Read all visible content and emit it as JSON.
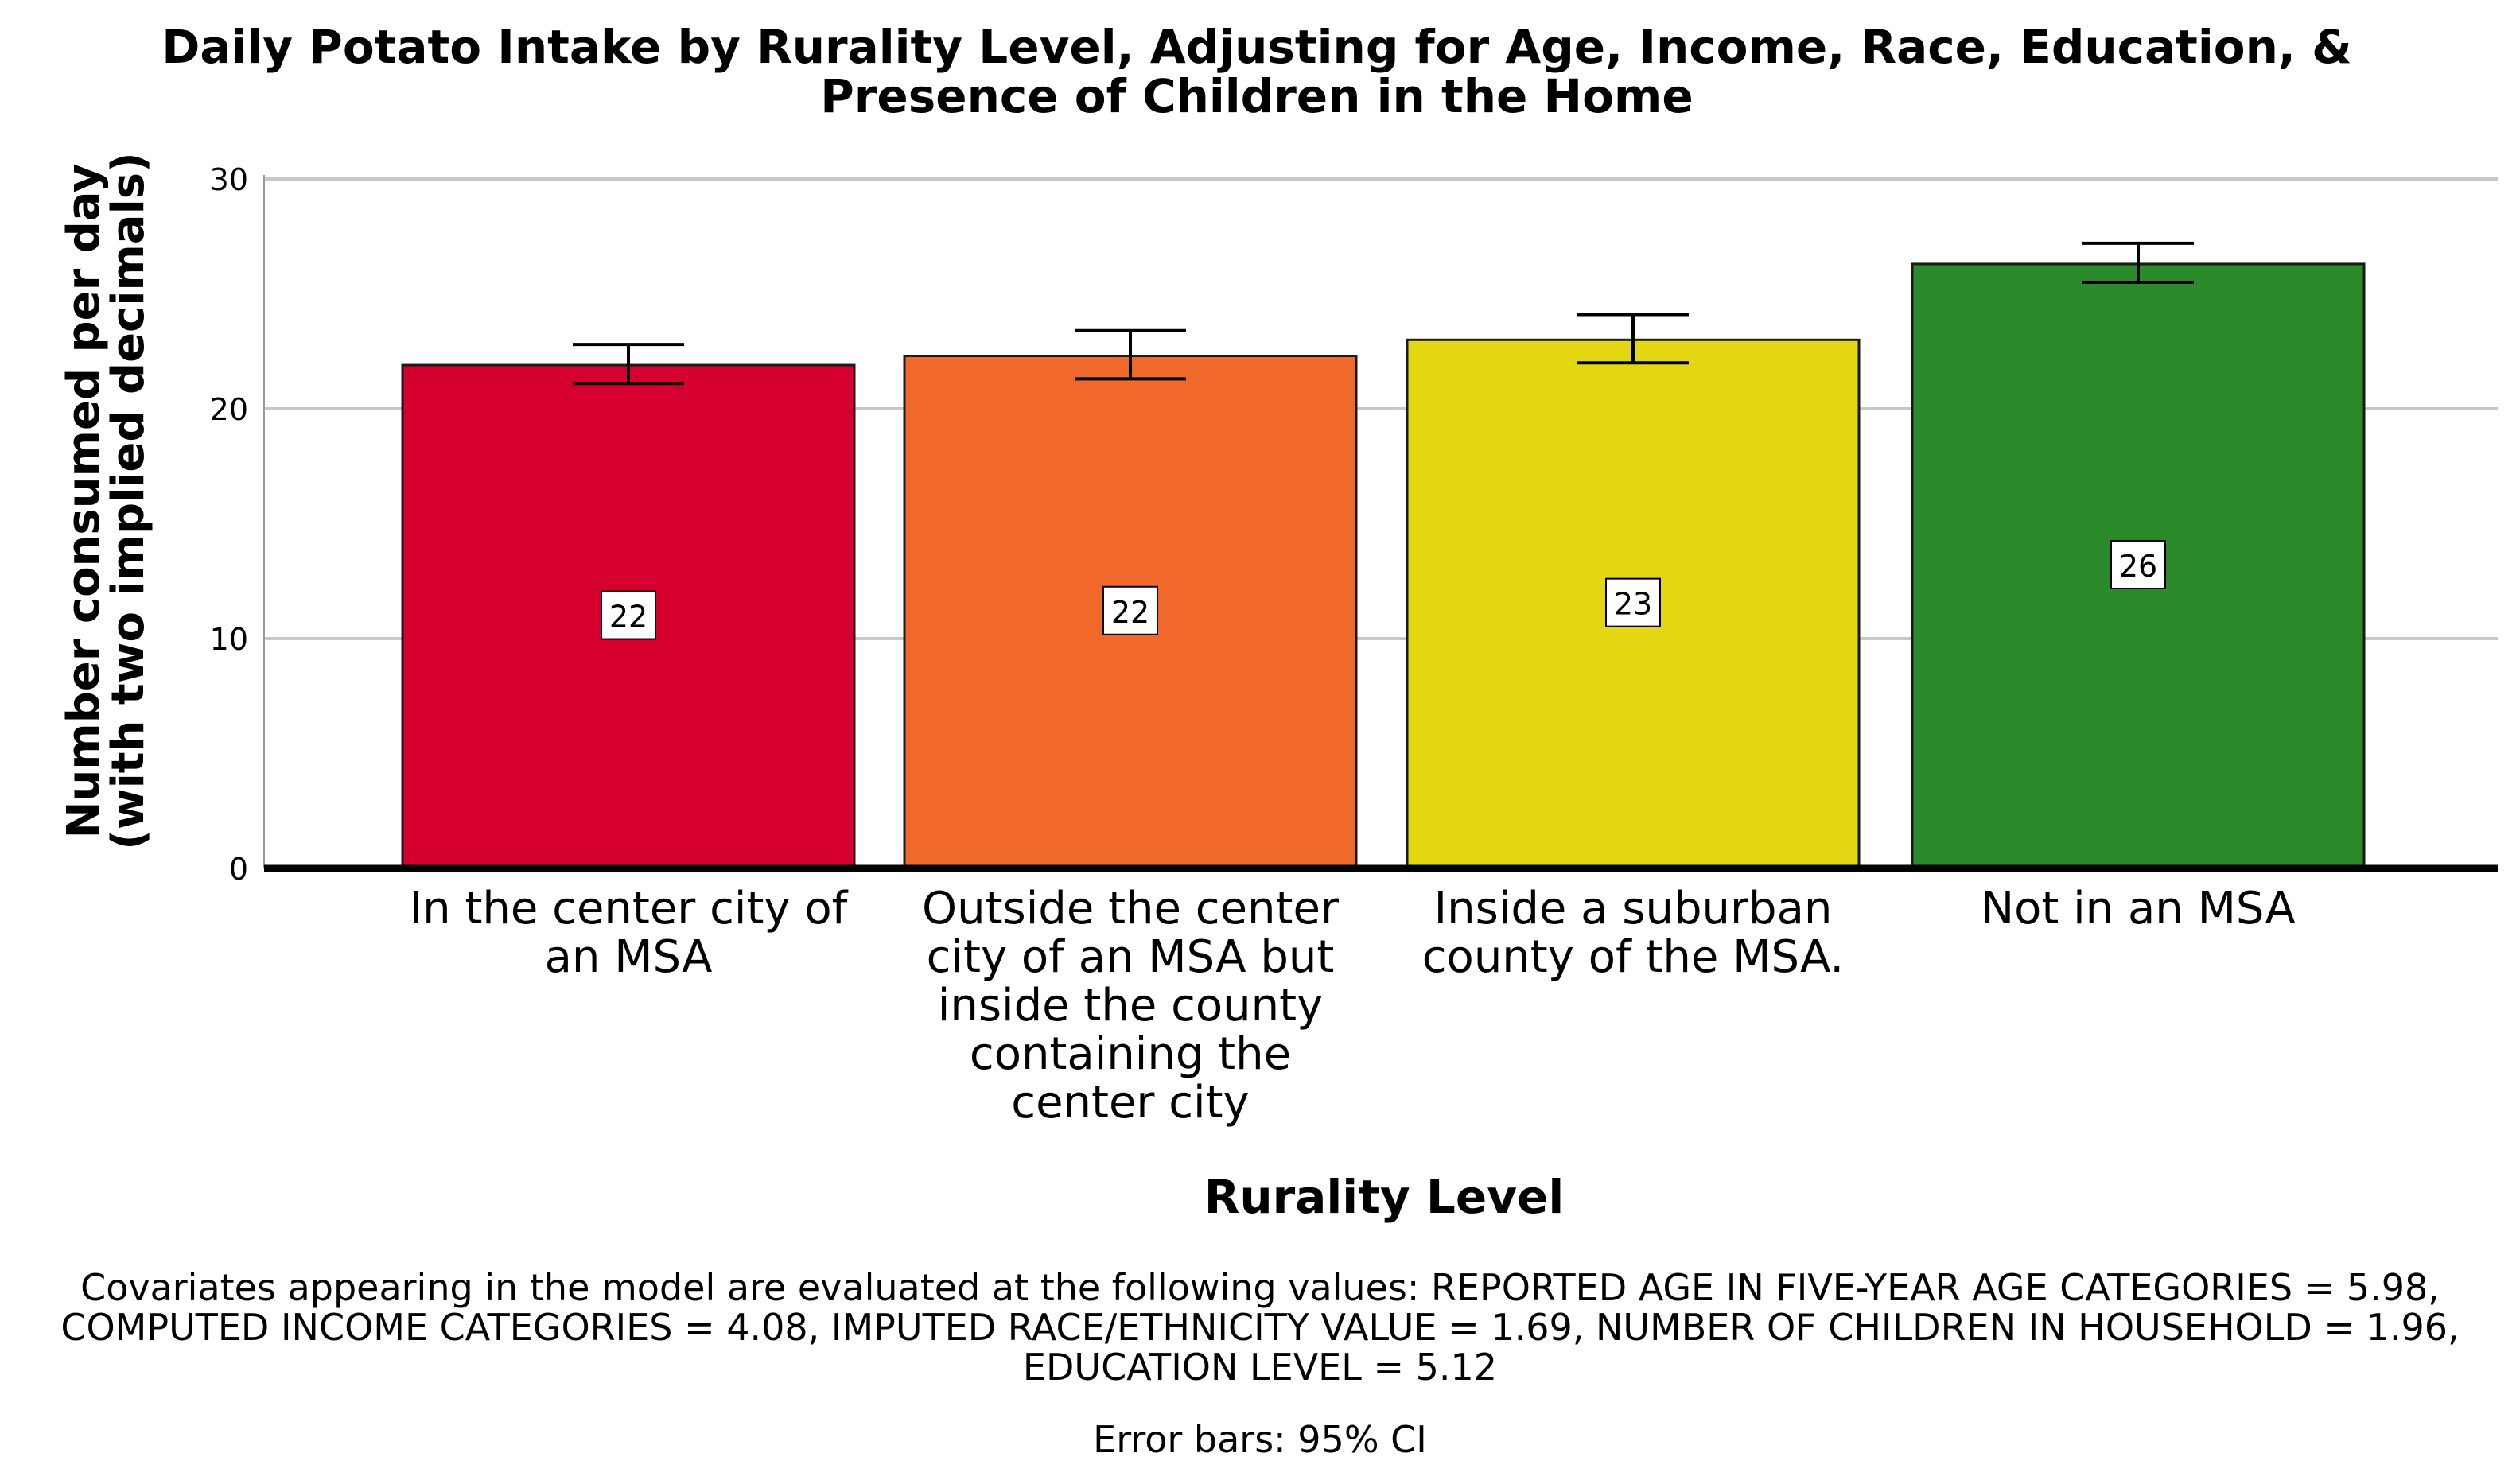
{
  "chart_data": {
    "type": "bar",
    "title": "Daily Potato Intake by Rurality Level, Adjusting for Age, Income, Race, Education, & Presence of Children in the Home",
    "xlabel": "Rurality Level",
    "ylabel": "Number consumed per day (with two implied decimals)",
    "categories": [
      "In the center city of an MSA",
      "Outside the center city of an MSA but inside the county containing the center city",
      "Inside a suburban county of the MSA.",
      "Not in an MSA"
    ],
    "values": [
      21.9,
      22.3,
      23.0,
      26.3
    ],
    "data_labels": [
      "22",
      "22",
      "23",
      "26"
    ],
    "ci_lower": [
      21.1,
      21.3,
      22.0,
      25.5
    ],
    "ci_upper": [
      22.8,
      23.4,
      24.1,
      27.2
    ],
    "colors": [
      "#d6002e",
      "#f0692a",
      "#e3d712",
      "#2b8a2a"
    ],
    "ylim": [
      0,
      30
    ],
    "yticks": [
      0,
      10,
      20,
      30
    ],
    "grid": true,
    "footnote_covariates": "Covariates appearing in the model are evaluated at the following values: REPORTED AGE IN FIVE-YEAR AGE CATEGORIES = 5.98, COMPUTED INCOME CATEGORIES = 4.08, IMPUTED RACE/ETHNICITY VALUE = 1.69, NUMBER OF CHILDREN IN HOUSEHOLD = 1.96, EDUCATION LEVEL = 5.12",
    "footnote_error_bars": "Error bars: 95% CI"
  }
}
